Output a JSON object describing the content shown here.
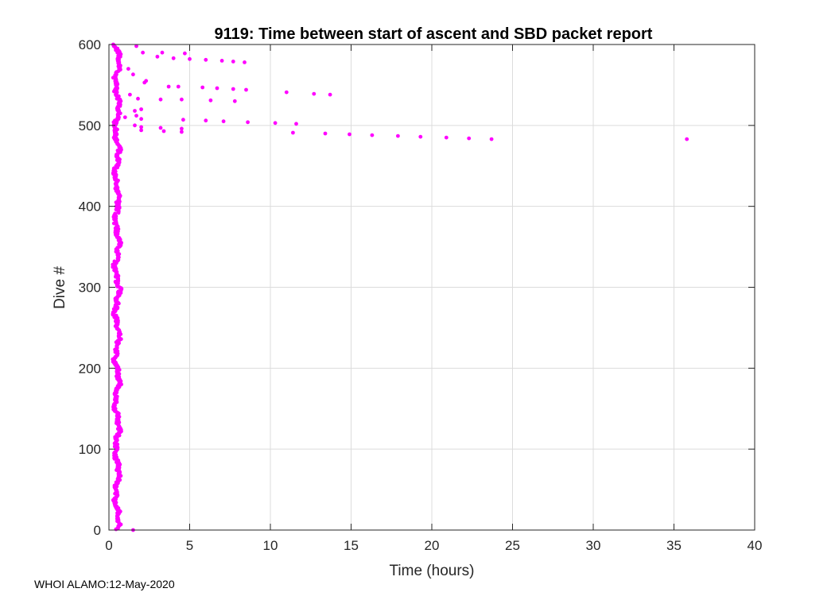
{
  "chart_data": {
    "type": "scatter",
    "title": "9119: Time between start of ascent and SBD packet report",
    "xlabel": "Time (hours)",
    "ylabel": "Dive #",
    "xlim": [
      0,
      40
    ],
    "ylim": [
      0,
      600
    ],
    "xticks": [
      "0",
      "5",
      "10",
      "15",
      "20",
      "25",
      "30",
      "35",
      "40"
    ],
    "yticks": [
      "0",
      "100",
      "200",
      "300",
      "400",
      "500",
      "600"
    ],
    "grid": true,
    "marker_color": "#ff00ff",
    "outliers": [
      {
        "x": 1.5,
        "y": 0
      },
      {
        "x": 1.7,
        "y": 598
      },
      {
        "x": 2.1,
        "y": 590
      },
      {
        "x": 3.0,
        "y": 585
      },
      {
        "x": 3.3,
        "y": 590
      },
      {
        "x": 4.0,
        "y": 583
      },
      {
        "x": 4.7,
        "y": 589
      },
      {
        "x": 5.0,
        "y": 582
      },
      {
        "x": 6.0,
        "y": 581
      },
      {
        "x": 7.0,
        "y": 580
      },
      {
        "x": 7.7,
        "y": 579
      },
      {
        "x": 8.4,
        "y": 578
      },
      {
        "x": 1.2,
        "y": 570
      },
      {
        "x": 1.5,
        "y": 563
      },
      {
        "x": 2.2,
        "y": 553
      },
      {
        "x": 2.3,
        "y": 555
      },
      {
        "x": 3.7,
        "y": 548
      },
      {
        "x": 4.3,
        "y": 548
      },
      {
        "x": 5.8,
        "y": 547
      },
      {
        "x": 6.7,
        "y": 546
      },
      {
        "x": 7.7,
        "y": 545
      },
      {
        "x": 8.5,
        "y": 544
      },
      {
        "x": 11.0,
        "y": 541
      },
      {
        "x": 12.7,
        "y": 539
      },
      {
        "x": 13.7,
        "y": 538
      },
      {
        "x": 1.3,
        "y": 538
      },
      {
        "x": 1.8,
        "y": 533
      },
      {
        "x": 3.2,
        "y": 532
      },
      {
        "x": 4.5,
        "y": 532
      },
      {
        "x": 6.3,
        "y": 531
      },
      {
        "x": 7.8,
        "y": 530
      },
      {
        "x": 2.0,
        "y": 520
      },
      {
        "x": 1.6,
        "y": 518
      },
      {
        "x": 1.7,
        "y": 512
      },
      {
        "x": 1.0,
        "y": 510
      },
      {
        "x": 2.0,
        "y": 508
      },
      {
        "x": 4.6,
        "y": 507
      },
      {
        "x": 6.0,
        "y": 506
      },
      {
        "x": 7.1,
        "y": 505
      },
      {
        "x": 8.6,
        "y": 504
      },
      {
        "x": 10.3,
        "y": 503
      },
      {
        "x": 11.6,
        "y": 502
      },
      {
        "x": 1.6,
        "y": 500
      },
      {
        "x": 2.0,
        "y": 498
      },
      {
        "x": 3.2,
        "y": 497
      },
      {
        "x": 4.5,
        "y": 496
      },
      {
        "x": 2.0,
        "y": 494
      },
      {
        "x": 3.4,
        "y": 493
      },
      {
        "x": 4.5,
        "y": 492
      },
      {
        "x": 11.4,
        "y": 491
      },
      {
        "x": 13.4,
        "y": 490
      },
      {
        "x": 14.9,
        "y": 489
      },
      {
        "x": 16.3,
        "y": 488
      },
      {
        "x": 17.9,
        "y": 487
      },
      {
        "x": 19.3,
        "y": 486
      },
      {
        "x": 20.9,
        "y": 485
      },
      {
        "x": 22.3,
        "y": 484
      },
      {
        "x": 23.7,
        "y": 483
      },
      {
        "x": 35.8,
        "y": 483
      }
    ],
    "main_cluster": {
      "dive_range": [
        1,
        600
      ],
      "x_range_hours": [
        0.2,
        0.9
      ],
      "note_x_center": 0.5
    }
  },
  "footer": {
    "text": "WHOI ALAMO:12-May-2020"
  }
}
